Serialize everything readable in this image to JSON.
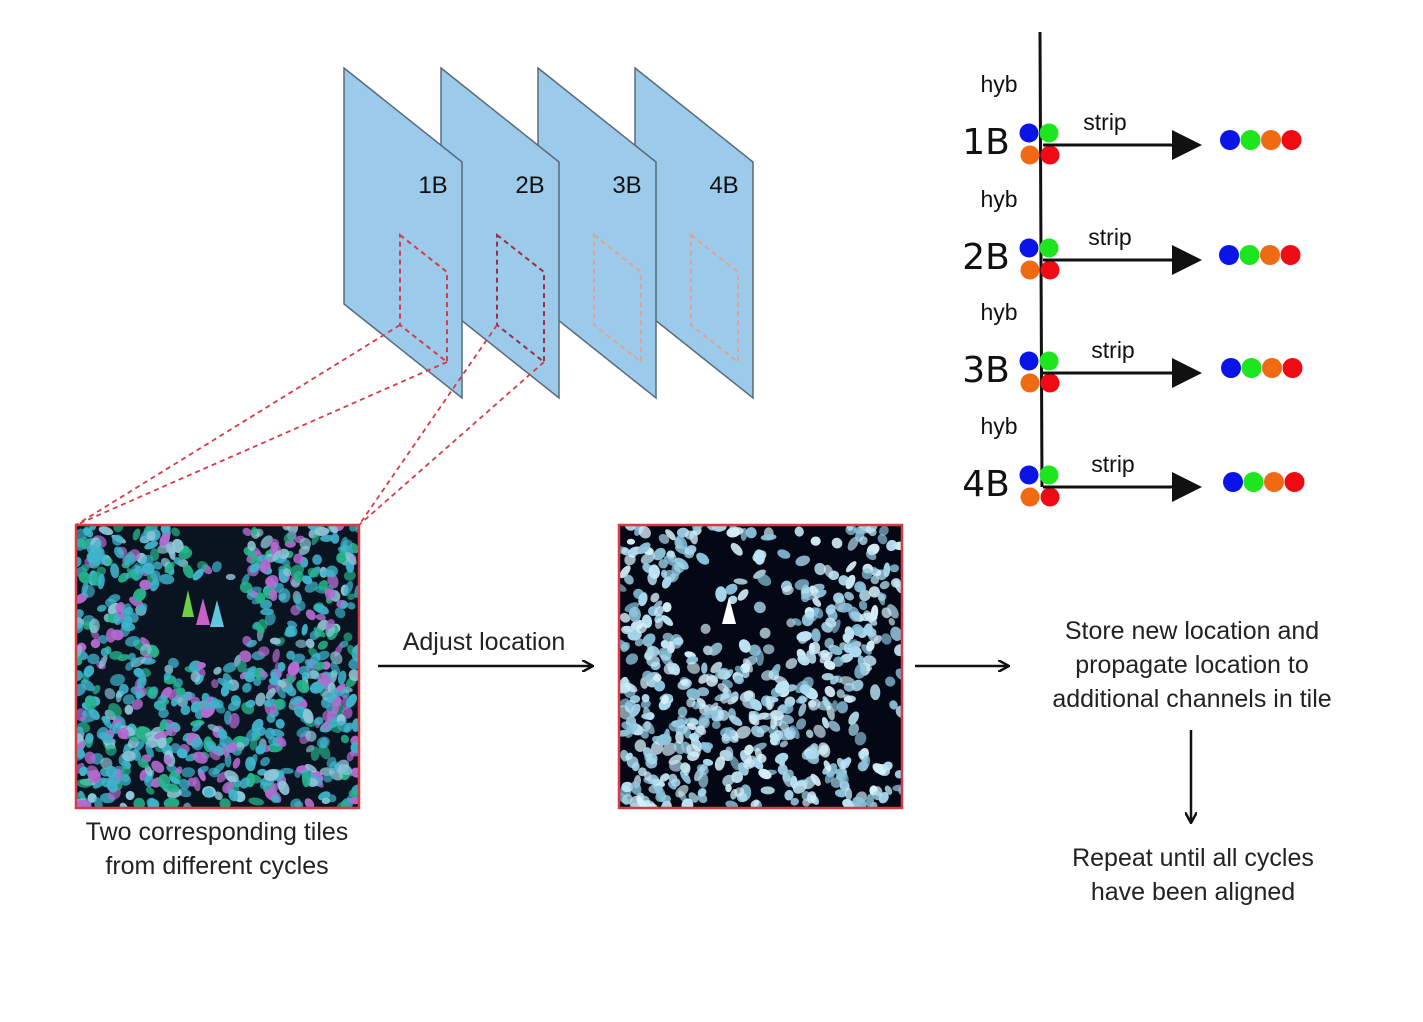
{
  "planes": [
    "1B",
    "2B",
    "3B",
    "4B"
  ],
  "timeline": {
    "rounds": [
      {
        "hyb_label": "hyb",
        "cycle_label": "1B",
        "strip_label": "strip"
      },
      {
        "hyb_label": "hyb",
        "cycle_label": "2B",
        "strip_label": "strip"
      },
      {
        "hyb_label": "hyb",
        "cycle_label": "3B",
        "strip_label": "strip"
      },
      {
        "hyb_label": "hyb",
        "cycle_label": "4B",
        "strip_label": "strip"
      }
    ],
    "channel_colors": [
      "#0a14e6",
      "#1ee61e",
      "#f06a14",
      "#f00a14"
    ]
  },
  "flow": {
    "left_caption_line1": "Two corresponding tiles",
    "left_caption_line2": "from different cycles",
    "adjust_label": "Adjust location",
    "store_line1": "Store new location and",
    "store_line2": "propagate location to",
    "store_line3": "additional channels in tile",
    "repeat_line1": "Repeat until all cycles",
    "repeat_line2": "have been aligned"
  },
  "colors": {
    "plane_fill": "#9ccaeb",
    "roi_outline": "#d53c48",
    "nuclei_cyan": "#3fb4cc",
    "nuclei_magenta": "#b46acf",
    "nuclei_green": "#25b48a",
    "nuclei_white": "#bfe6f5"
  }
}
